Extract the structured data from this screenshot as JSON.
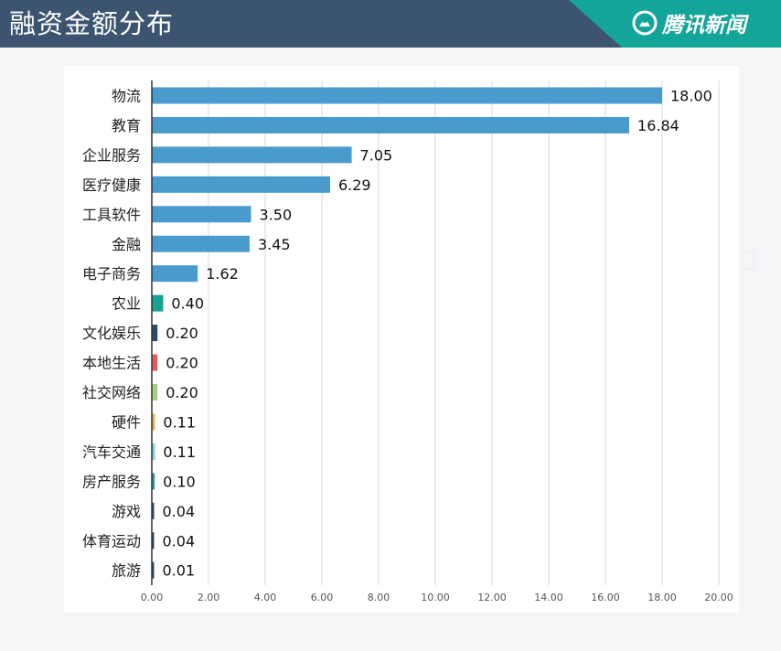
{
  "header": {
    "title": "融资金额分布",
    "brand_name": "腾讯新闻",
    "bg_color": "#3c5470",
    "accent_color": "#14a59a",
    "logo_icon": "tencent-news-logo-icon"
  },
  "chart_data": {
    "type": "bar",
    "orientation": "horizontal",
    "categories": [
      "物流",
      "教育",
      "企业服务",
      "医疗健康",
      "工具软件",
      "金融",
      "电子商务",
      "农业",
      "文化娱乐",
      "本地生活",
      "社交网络",
      "硬件",
      "汽车交通",
      "房产服务",
      "游戏",
      "体育运动",
      "旅游"
    ],
    "values": [
      18.0,
      16.84,
      7.05,
      6.29,
      3.5,
      3.45,
      1.62,
      0.4,
      0.2,
      0.2,
      0.2,
      0.11,
      0.11,
      0.1,
      0.04,
      0.04,
      0.01
    ],
    "value_labels": [
      "18.00",
      "16.84",
      "7.05",
      "6.29",
      "3.50",
      "3.45",
      "1.62",
      "0.40",
      "0.20",
      "0.20",
      "0.20",
      "0.11",
      "0.11",
      "0.10",
      "0.04",
      "0.04",
      "0.01"
    ],
    "bar_colors": [
      "#4a9bcd",
      "#4a9bcd",
      "#4a9bcd",
      "#4a9bcd",
      "#4a9bcd",
      "#4a9bcd",
      "#4a9bcd",
      "#17a095",
      "#2c4a6b",
      "#e25c5c",
      "#a3cf84",
      "#e3b15a",
      "#7fd0d8",
      "#1f9e95",
      "#2c4a6b",
      "#2c4a6b",
      "#2c4a6b"
    ],
    "xlim": [
      0,
      20
    ],
    "xticks": [
      "0.00",
      "2.00",
      "4.00",
      "6.00",
      "8.00",
      "10.00",
      "12.00",
      "14.00",
      "16.00",
      "18.00",
      "20.00"
    ],
    "grid": true,
    "title": "",
    "xlabel": "",
    "ylabel": ""
  }
}
